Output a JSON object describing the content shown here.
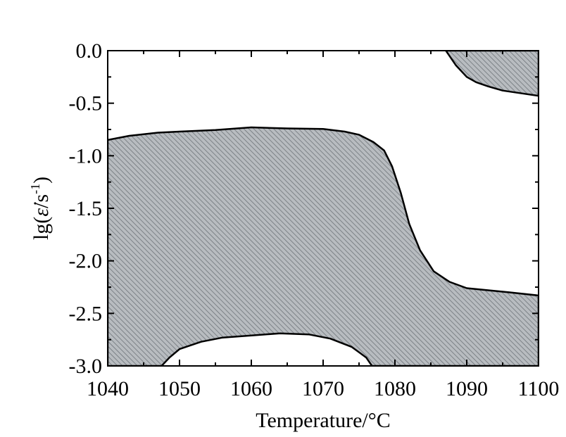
{
  "chart_data": {
    "type": "area",
    "xlabel": "Temperature/°C",
    "ylabel": {
      "prefix": "lg(",
      "symbol": "ε̇",
      "unit": "/s",
      "exponent": "-1",
      "suffix": ")"
    },
    "xlim": [
      1040,
      1100
    ],
    "ylim": [
      -3.0,
      0.0
    ],
    "xticks": [
      "1040",
      "1050",
      "1060",
      "1070",
      "1080",
      "1090",
      "1100"
    ],
    "yticks": [
      "0.0",
      "-0.5",
      "-1.0",
      "-1.5",
      "-2.0",
      "-2.5",
      "-3.0"
    ],
    "xtick_values": [
      1040,
      1050,
      1060,
      1070,
      1080,
      1090,
      1100
    ],
    "ytick_values": [
      0.0,
      -0.5,
      -1.0,
      -1.5,
      -2.0,
      -2.5,
      -3.0
    ],
    "grid": false,
    "colors": {
      "fill": "#b8bcc0",
      "hatch": "#6e7479",
      "boundary": "#000000"
    },
    "regions": [
      {
        "id": "lower-left-region",
        "points": [
          [
            1040,
            -0.85
          ],
          [
            1043,
            -0.81
          ],
          [
            1047,
            -0.78
          ],
          [
            1050,
            -0.77
          ],
          [
            1055,
            -0.755
          ],
          [
            1060,
            -0.73
          ],
          [
            1065,
            -0.74
          ],
          [
            1070,
            -0.745
          ],
          [
            1073,
            -0.77
          ],
          [
            1075,
            -0.8
          ],
          [
            1077,
            -0.87
          ],
          [
            1078.5,
            -0.95
          ],
          [
            1079.6,
            -1.1
          ],
          [
            1080.8,
            -1.35
          ],
          [
            1082,
            -1.65
          ],
          [
            1083.5,
            -1.9
          ],
          [
            1085.4,
            -2.1
          ],
          [
            1087.6,
            -2.2
          ],
          [
            1090,
            -2.26
          ],
          [
            1093,
            -2.28
          ],
          [
            1096,
            -2.3
          ],
          [
            1100,
            -2.33
          ],
          [
            1100,
            -3.0
          ],
          [
            1076.8,
            -3.0
          ],
          [
            1076,
            -2.92
          ],
          [
            1074,
            -2.82
          ],
          [
            1071,
            -2.74
          ],
          [
            1068,
            -2.7
          ],
          [
            1064,
            -2.69
          ],
          [
            1060,
            -2.71
          ],
          [
            1056,
            -2.73
          ],
          [
            1053,
            -2.77
          ],
          [
            1050,
            -2.84
          ],
          [
            1048.6,
            -2.92
          ],
          [
            1047.5,
            -3.0
          ],
          [
            1040,
            -3.0
          ]
        ]
      },
      {
        "id": "upper-right-region",
        "points": [
          [
            1087.1,
            0.0
          ],
          [
            1088.5,
            -0.14
          ],
          [
            1090,
            -0.25
          ],
          [
            1091.3,
            -0.3
          ],
          [
            1093,
            -0.34
          ],
          [
            1095,
            -0.38
          ],
          [
            1097,
            -0.4
          ],
          [
            1100,
            -0.43
          ],
          [
            1100,
            0.0
          ]
        ]
      }
    ]
  }
}
